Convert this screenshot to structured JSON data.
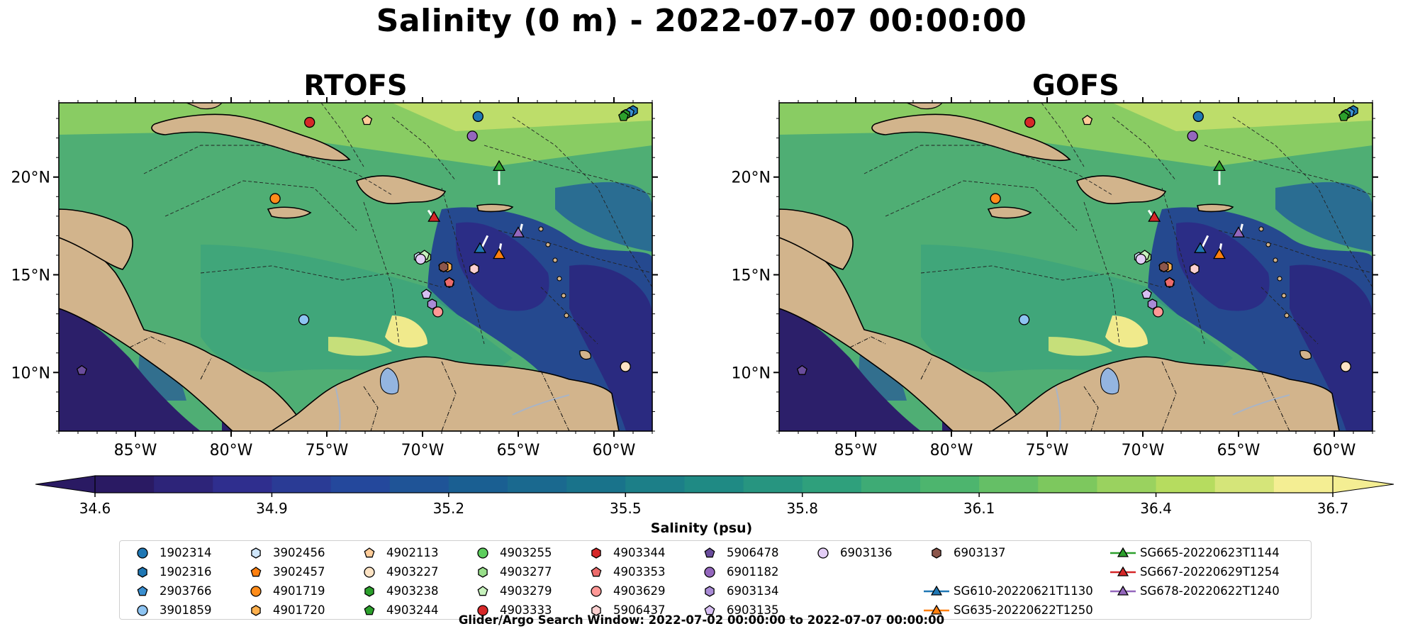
{
  "figure": {
    "title": "Salinity (0 m) - 2022-07-07 00:00:00",
    "colorbar_label": "Salinity (psu)",
    "footer": "Glider/Argo Search Window: 2022-07-02 00:00:00 to 2022-07-07 00:00:00"
  },
  "chart_data": [
    {
      "type": "heatmap",
      "title": "RTOFS",
      "x_ticks": [
        -85,
        -80,
        -75,
        -70,
        -65,
        -60
      ],
      "x_tick_labels": [
        "85°W",
        "80°W",
        "75°W",
        "70°W",
        "65°W",
        "60°W"
      ],
      "y_ticks": [
        10,
        15,
        20
      ],
      "y_tick_labels": [
        "10°N",
        "15°N",
        "20°N"
      ],
      "xlim": [
        -89,
        -58
      ],
      "ylim": [
        7,
        23.8
      ],
      "colorbar": {
        "min": 34.6,
        "max": 36.7,
        "ticks": [
          34.6,
          34.9,
          35.2,
          35.5,
          35.8,
          36.1,
          36.4,
          36.7
        ],
        "colormap": [
          "#2a1a63",
          "#2f2e8e",
          "#24489c",
          "#1a5f92",
          "#19738b",
          "#1f8a84",
          "#2fa07c",
          "#4db56e",
          "#7dc85e",
          "#b6dc5f",
          "#f4ee93"
        ]
      }
    },
    {
      "type": "heatmap",
      "title": "GOFS",
      "x_ticks": [
        -85,
        -80,
        -75,
        -70,
        -65,
        -60
      ],
      "x_tick_labels": [
        "85°W",
        "80°W",
        "75°W",
        "70°W",
        "65°W",
        "60°W"
      ],
      "y_ticks": [
        10,
        15,
        20
      ],
      "y_tick_labels": [
        "10°N",
        "15°N",
        "20°N"
      ],
      "xlim": [
        -89,
        -58
      ],
      "ylim": [
        7,
        23.8
      ]
    }
  ],
  "markers": [
    {
      "id": "1902314",
      "shape": "circle",
      "color": "#1f77b4",
      "lon": -67.1,
      "lat": 23.1
    },
    {
      "id": "1902316",
      "shape": "hexagon",
      "color": "#1f77b4",
      "lon": -59.0,
      "lat": 23.4
    },
    {
      "id": "2903766",
      "shape": "pentagon",
      "color": "#3a8fd0",
      "lon": -59.2,
      "lat": 23.3
    },
    {
      "id": "3901859",
      "shape": "circle",
      "color": "#8ec4f2",
      "lon": -76.2,
      "lat": 12.7
    },
    {
      "id": "3902456",
      "shape": "hexagon",
      "color": "#cfe6fb",
      "lon": -70.2,
      "lat": 15.9
    },
    {
      "id": "3902457",
      "shape": "pentagon",
      "color": "#ff7f0e",
      "lon": -68.9,
      "lat": 15.4
    },
    {
      "id": "4901719",
      "shape": "circle",
      "color": "#ff8c1a",
      "lon": -77.7,
      "lat": 18.9
    },
    {
      "id": "4901720",
      "shape": "hexagon",
      "color": "#ffb04d",
      "lon": -68.7,
      "lat": 15.4
    },
    {
      "id": "4902113",
      "shape": "pentagon",
      "color": "#ffcc99",
      "lon": -72.9,
      "lat": 22.9
    },
    {
      "id": "4903227",
      "shape": "circle",
      "color": "#fde3c4",
      "lon": -59.4,
      "lat": 10.3
    },
    {
      "id": "4903238",
      "shape": "hexagon",
      "color": "#2ca02c",
      "lon": -59.4,
      "lat": 23.2
    },
    {
      "id": "4903244",
      "shape": "pentagon",
      "color": "#2ca02c",
      "lon": -59.5,
      "lat": 23.1
    },
    {
      "id": "4903255",
      "shape": "circle",
      "color": "#5ccd5c",
      "lon": -69.9,
      "lat": 15.9
    },
    {
      "id": "4903277",
      "shape": "hexagon",
      "color": "#98df8a",
      "lon": -69.8,
      "lat": 15.9
    },
    {
      "id": "4903279",
      "shape": "pentagon",
      "color": "#c7f2bd",
      "lon": -69.9,
      "lat": 16.0
    },
    {
      "id": "4903333",
      "shape": "circle",
      "color": "#d62728",
      "lon": -75.9,
      "lat": 22.8
    },
    {
      "id": "4903344",
      "shape": "hexagon",
      "color": "#d62728",
      "lon": -68.6,
      "lat": 14.6
    },
    {
      "id": "4903353",
      "shape": "pentagon",
      "color": "#ec6b6b",
      "lon": -68.6,
      "lat": 14.6
    },
    {
      "id": "4903629",
      "shape": "circle",
      "color": "#ff9896",
      "lon": -69.2,
      "lat": 13.1
    },
    {
      "id": "5906437",
      "shape": "hexagon",
      "color": "#fbd0d0",
      "lon": -67.3,
      "lat": 15.3
    },
    {
      "id": "5906478",
      "shape": "pentagon",
      "color": "#6a4c9c",
      "lon": -87.8,
      "lat": 10.1
    },
    {
      "id": "6901182",
      "shape": "circle",
      "color": "#9467bd",
      "lon": -67.4,
      "lat": 22.1
    },
    {
      "id": "6903134",
      "shape": "hexagon",
      "color": "#a98bd6",
      "lon": -69.5,
      "lat": 13.5
    },
    {
      "id": "6903135",
      "shape": "pentagon",
      "color": "#d7bff2",
      "lon": -69.8,
      "lat": 14.0
    },
    {
      "id": "6903136",
      "shape": "circle",
      "color": "#e3cdf6",
      "lon": -70.1,
      "lat": 15.8
    },
    {
      "id": "6903137",
      "shape": "hexagon",
      "color": "#8c564b",
      "lon": -68.9,
      "lat": 15.4
    }
  ],
  "gliders": [
    {
      "id": "SG610-20220621T1130",
      "color": "#1f77b4",
      "lon": -67.0,
      "lat": 16.3,
      "track": [
        [
          -66.6,
          17.0
        ],
        [
          -66.9,
          16.4
        ]
      ]
    },
    {
      "id": "SG635-20220622T1250",
      "color": "#ff7f0e",
      "lon": -66.0,
      "lat": 16.0,
      "track": [
        [
          -65.9,
          16.6
        ],
        [
          -66.0,
          16.1
        ]
      ]
    },
    {
      "id": "SG665-20220623T1144",
      "color": "#2ca02c",
      "lon": -66.0,
      "lat": 20.5,
      "track": [
        [
          -66.0,
          19.6
        ],
        [
          -66.0,
          20.3
        ]
      ]
    },
    {
      "id": "SG667-20220629T1254",
      "color": "#d62728",
      "lon": -69.4,
      "lat": 17.9,
      "track": [
        [
          -69.7,
          18.3
        ],
        [
          -69.5,
          18.0
        ]
      ]
    },
    {
      "id": "SG678-20220622T1240",
      "color": "#9467bd",
      "lon": -65.0,
      "lat": 17.1,
      "track": [
        [
          -64.8,
          17.6
        ],
        [
          -64.9,
          17.2
        ]
      ]
    }
  ],
  "legend_entries": [
    {
      "label": "1902314",
      "shape": "circle",
      "color": "#1f77b4"
    },
    {
      "label": "1902316",
      "shape": "hexagon",
      "color": "#1f77b4"
    },
    {
      "label": "2903766",
      "shape": "pentagon",
      "color": "#3a8fd0"
    },
    {
      "label": "3901859",
      "shape": "circle",
      "color": "#8ec4f2"
    },
    {
      "label": "3902456",
      "shape": "hexagon",
      "color": "#cfe6fb"
    },
    {
      "label": "3902457",
      "shape": "pentagon",
      "color": "#ff7f0e"
    },
    {
      "label": "4901719",
      "shape": "circle",
      "color": "#ff8c1a"
    },
    {
      "label": "4901720",
      "shape": "hexagon",
      "color": "#ffb04d"
    },
    {
      "label": "4902113",
      "shape": "pentagon",
      "color": "#ffcc99"
    },
    {
      "label": "4903227",
      "shape": "circle",
      "color": "#fde3c4"
    },
    {
      "label": "4903238",
      "shape": "hexagon",
      "color": "#2ca02c"
    },
    {
      "label": "4903244",
      "shape": "pentagon",
      "color": "#2ca02c"
    },
    {
      "label": "4903255",
      "shape": "circle",
      "color": "#5ccd5c"
    },
    {
      "label": "4903277",
      "shape": "hexagon",
      "color": "#98df8a"
    },
    {
      "label": "4903279",
      "shape": "pentagon",
      "color": "#c7f2bd"
    },
    {
      "label": "4903333",
      "shape": "circle",
      "color": "#d62728"
    },
    {
      "label": "4903344",
      "shape": "hexagon",
      "color": "#d62728"
    },
    {
      "label": "4903353",
      "shape": "pentagon",
      "color": "#ec6b6b"
    },
    {
      "label": "4903629",
      "shape": "circle",
      "color": "#ff9896"
    },
    {
      "label": "5906437",
      "shape": "hexagon",
      "color": "#fbd0d0"
    },
    {
      "label": "5906478",
      "shape": "pentagon",
      "color": "#6a4c9c"
    },
    {
      "label": "6901182",
      "shape": "circle",
      "color": "#9467bd"
    },
    {
      "label": "6903134",
      "shape": "hexagon",
      "color": "#a98bd6"
    },
    {
      "label": "6903135",
      "shape": "pentagon",
      "color": "#d7bff2"
    },
    {
      "label": "6903136",
      "shape": "circle",
      "color": "#e3cdf6"
    },
    {
      "label": "6903137",
      "shape": "hexagon",
      "color": "#8c564b"
    },
    {
      "label": "SG610-20220621T1130",
      "shape": "triangle-line",
      "color": "#1f77b4"
    },
    {
      "label": "SG635-20220622T1250",
      "shape": "triangle-line",
      "color": "#ff7f0e"
    },
    {
      "label": "SG665-20220623T1144",
      "shape": "triangle-line",
      "color": "#2ca02c"
    },
    {
      "label": "SG667-20220629T1254",
      "shape": "triangle-line",
      "color": "#d62728"
    },
    {
      "label": "SG678-20220622T1240",
      "shape": "triangle-line",
      "color": "#9467bd"
    }
  ]
}
